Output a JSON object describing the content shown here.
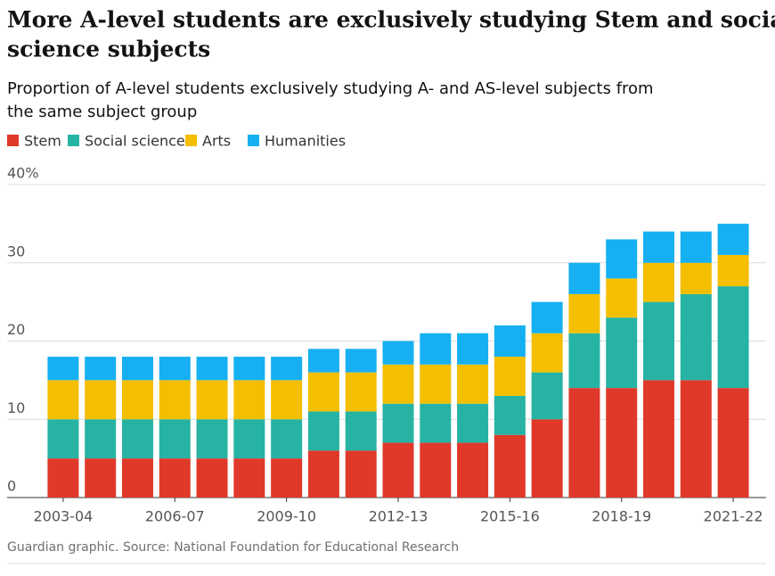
{
  "chart_data": {
    "type": "stacked_bar",
    "title": "More A-level students are exclusively studying Stem and social science subjects",
    "title_lines": [
      "More A-level students are exclusively studying Stem and social",
      "science subjects"
    ],
    "subtitle_lines": [
      "Proportion of A-level students exclusively studying A- and AS-level subjects from",
      "the same subject group"
    ],
    "source": "Guardian graphic. Source: National Foundation for Educational Research",
    "categories": [
      "2003-04",
      null,
      null,
      "2006-07",
      null,
      null,
      "2009-10",
      null,
      null,
      "2012-13",
      null,
      null,
      "2015-16",
      null,
      null,
      "2018-19",
      null,
      null,
      "2021-22"
    ],
    "series": [
      {
        "name": "Stem",
        "color": "#e0392a",
        "values": [
          5,
          5,
          5,
          5,
          5,
          5,
          5,
          6,
          6,
          7,
          7,
          7,
          8,
          10,
          14,
          14,
          15,
          15,
          14
        ]
      },
      {
        "name": "Social sciences",
        "color": "#27b3a4",
        "values": [
          5,
          5,
          5,
          5,
          5,
          5,
          5,
          5,
          5,
          5,
          5,
          5,
          5,
          6,
          7,
          9,
          10,
          11,
          13
        ]
      },
      {
        "name": "Arts",
        "color": "#f4bf00",
        "values": [
          5,
          5,
          5,
          5,
          5,
          5,
          5,
          5,
          5,
          5,
          5,
          5,
          5,
          5,
          5,
          5,
          5,
          4,
          4
        ]
      },
      {
        "name": "Humanities",
        "color": "#16b0f2",
        "values": [
          3,
          3,
          3,
          3,
          3,
          3,
          3,
          3,
          3,
          3,
          4,
          4,
          4,
          4,
          4,
          5,
          4,
          4,
          4
        ]
      }
    ],
    "ylim": [
      0,
      40
    ],
    "yticks": [
      0,
      10,
      20,
      30,
      {
        "value": 40,
        "label": "40%"
      }
    ],
    "grid": true
  }
}
